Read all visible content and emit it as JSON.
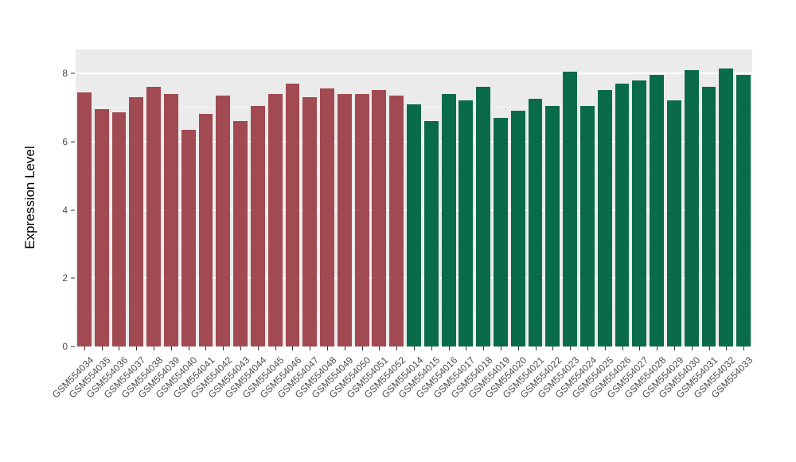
{
  "chart_data": {
    "type": "bar",
    "title": "",
    "xlabel": "",
    "ylabel": "Expression Level",
    "ylim": [
      0,
      8.7
    ],
    "yticks": [
      0,
      2,
      4,
      6,
      8
    ],
    "yticks_minor": [
      1,
      3,
      5,
      7
    ],
    "grid": true,
    "legend": "none",
    "panel_background": "#EBEBEB",
    "major_grid_color": "#FFFFFF",
    "minor_grid_color": "#F5F5F5",
    "group_colors": {
      "group1": "#A14A52",
      "group2": "#0A6B4A"
    },
    "bars": [
      {
        "label": "GSM554034",
        "value": 7.45,
        "group": "group1"
      },
      {
        "label": "GSM554035",
        "value": 6.95,
        "group": "group1"
      },
      {
        "label": "GSM554036",
        "value": 6.85,
        "group": "group1"
      },
      {
        "label": "GSM554037",
        "value": 7.3,
        "group": "group1"
      },
      {
        "label": "GSM554038",
        "value": 7.6,
        "group": "group1"
      },
      {
        "label": "GSM554039",
        "value": 7.4,
        "group": "group1"
      },
      {
        "label": "GSM554040",
        "value": 6.35,
        "group": "group1"
      },
      {
        "label": "GSM554041",
        "value": 6.8,
        "group": "group1"
      },
      {
        "label": "GSM554042",
        "value": 7.35,
        "group": "group1"
      },
      {
        "label": "GSM554043",
        "value": 6.6,
        "group": "group1"
      },
      {
        "label": "GSM554044",
        "value": 7.05,
        "group": "group1"
      },
      {
        "label": "GSM554045",
        "value": 7.4,
        "group": "group1"
      },
      {
        "label": "GSM554046",
        "value": 7.7,
        "group": "group1"
      },
      {
        "label": "GSM554047",
        "value": 7.3,
        "group": "group1"
      },
      {
        "label": "GSM554048",
        "value": 7.55,
        "group": "group1"
      },
      {
        "label": "GSM554049",
        "value": 7.4,
        "group": "group1"
      },
      {
        "label": "GSM554050",
        "value": 7.4,
        "group": "group1"
      },
      {
        "label": "GSM554051",
        "value": 7.5,
        "group": "group1"
      },
      {
        "label": "GSM554052",
        "value": 7.35,
        "group": "group1"
      },
      {
        "label": "GSM554014",
        "value": 7.1,
        "group": "group2"
      },
      {
        "label": "GSM554015",
        "value": 6.6,
        "group": "group2"
      },
      {
        "label": "GSM554016",
        "value": 7.4,
        "group": "group2"
      },
      {
        "label": "GSM554017",
        "value": 7.2,
        "group": "group2"
      },
      {
        "label": "GSM554018",
        "value": 7.6,
        "group": "group2"
      },
      {
        "label": "GSM554019",
        "value": 6.7,
        "group": "group2"
      },
      {
        "label": "GSM554020",
        "value": 6.9,
        "group": "group2"
      },
      {
        "label": "GSM554021",
        "value": 7.25,
        "group": "group2"
      },
      {
        "label": "GSM554022",
        "value": 7.05,
        "group": "group2"
      },
      {
        "label": "GSM554023",
        "value": 8.05,
        "group": "group2"
      },
      {
        "label": "GSM554024",
        "value": 7.05,
        "group": "group2"
      },
      {
        "label": "GSM554025",
        "value": 7.5,
        "group": "group2"
      },
      {
        "label": "GSM554026",
        "value": 7.7,
        "group": "group2"
      },
      {
        "label": "GSM554027",
        "value": 7.8,
        "group": "group2"
      },
      {
        "label": "GSM554028",
        "value": 7.95,
        "group": "group2"
      },
      {
        "label": "GSM554029",
        "value": 7.2,
        "group": "group2"
      },
      {
        "label": "GSM554030",
        "value": 8.1,
        "group": "group2"
      },
      {
        "label": "GSM554031",
        "value": 7.6,
        "group": "group2"
      },
      {
        "label": "GSM554032",
        "value": 8.15,
        "group": "group2"
      },
      {
        "label": "GSM554033",
        "value": 7.95,
        "group": "group2"
      }
    ]
  }
}
